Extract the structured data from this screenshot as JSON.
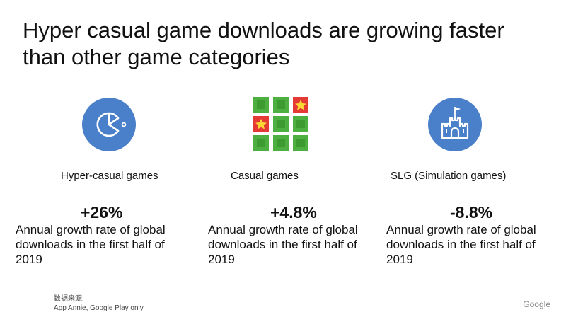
{
  "title": "Hyper casual game downloads are growing faster than other game categories",
  "columns": [
    {
      "label": "Hyper-casual games",
      "value": "+26%",
      "description": "Annual growth rate of global downloads in the first half of 2019",
      "icon": "pacman-icon"
    },
    {
      "label": "Casual games",
      "value": "+4.8%",
      "description": "Annual growth rate of global downloads in the first half of 2019",
      "icon": "tile-grid-icon"
    },
    {
      "label": "SLG (Simulation games)",
      "value": "-8.8%",
      "description": "Annual growth rate of global downloads in the first half of 2019",
      "icon": "castle-icon"
    }
  ],
  "source": {
    "heading": "数据来源:",
    "text": "App Annie, Google Play only"
  },
  "brand": "Google",
  "colors": {
    "icon_blue": "#4a7fc9",
    "tile_green": "#4caf3f",
    "tile_red": "#e53935",
    "star_yellow": "#fdd835"
  }
}
